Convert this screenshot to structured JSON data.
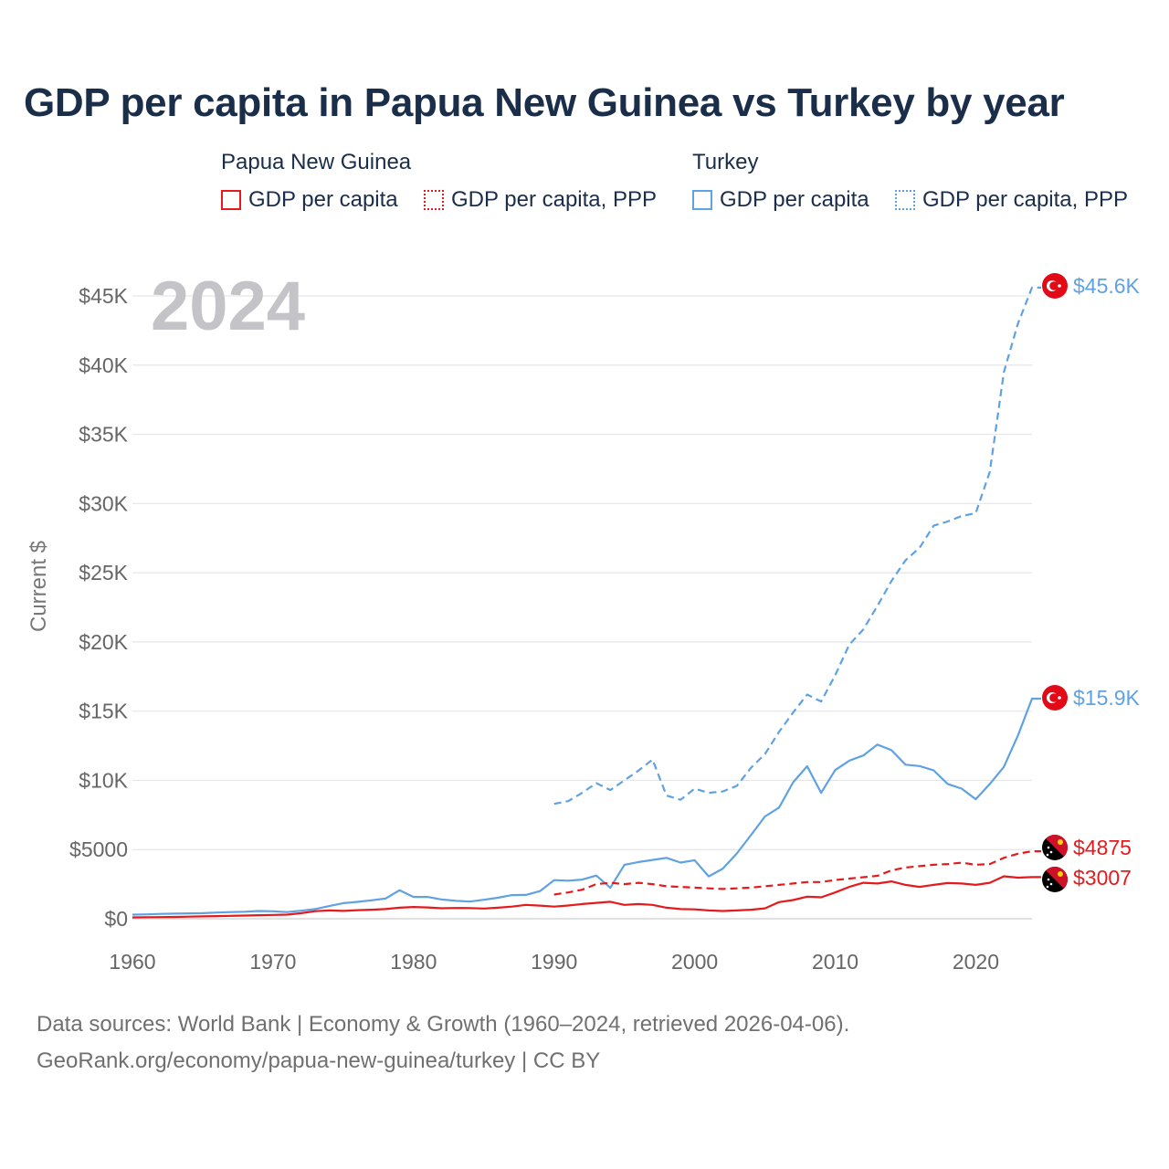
{
  "title": "GDP per capita in Papua New Guinea vs Turkey by year",
  "year_label": "2024",
  "legend": {
    "groups": [
      {
        "name": "Papua New Guinea",
        "items": [
          {
            "label": "GDP per capita",
            "color": "#e41a1c",
            "style": "solid"
          },
          {
            "label": "GDP per capita, PPP",
            "color": "#e41a1c",
            "style": "dotted"
          }
        ]
      },
      {
        "name": "Turkey",
        "items": [
          {
            "label": "GDP per capita",
            "color": "#5fa2e4",
            "style": "solid"
          },
          {
            "label": "GDP per capita, PPP",
            "color": "#5fa2e4",
            "style": "dotted"
          }
        ]
      }
    ]
  },
  "footer": {
    "line1": "Data sources: World Bank | Economy & Growth (1960–2024, retrieved 2026-04-06).",
    "line2": "GeoRank.org/economy/papua-new-guinea/turkey | CC BY"
  },
  "chart_data": {
    "type": "line",
    "title": "GDP per capita in Papua New Guinea vs Turkey by year",
    "xlabel": "",
    "ylabel": "Current $",
    "xlim": [
      1960,
      2024
    ],
    "ylim": [
      0,
      45000
    ],
    "x_ticks": [
      1960,
      1970,
      1980,
      1990,
      2000,
      2010,
      2020
    ],
    "x_tick_labels": [
      "1960",
      "1970",
      "1980",
      "1990",
      "2000",
      "2010",
      "2020"
    ],
    "y_ticks": [
      0,
      5000,
      10000,
      15000,
      20000,
      25000,
      30000,
      35000,
      40000,
      45000
    ],
    "y_tick_labels": [
      "$0",
      "$5000",
      "$10K",
      "$15K",
      "$20K",
      "$25K",
      "$30K",
      "$35K",
      "$40K",
      "$45K"
    ],
    "grid": true,
    "series": [
      {
        "name": "Turkey GDP per capita, PPP",
        "country": "Turkey",
        "color": "#5fa2e4",
        "dash": "dashed",
        "end_label": "$45.6K",
        "x": [
          1990,
          1991,
          1992,
          1993,
          1994,
          1995,
          1996,
          1997,
          1998,
          1999,
          2000,
          2001,
          2002,
          2003,
          2004,
          2005,
          2006,
          2007,
          2008,
          2009,
          2010,
          2011,
          2012,
          2013,
          2014,
          2015,
          2016,
          2017,
          2018,
          2019,
          2020,
          2021,
          2022,
          2023,
          2024
        ],
        "values": [
          8300,
          8500,
          9100,
          9800,
          9300,
          10000,
          10700,
          11500,
          8900,
          8600,
          9400,
          9100,
          9200,
          9600,
          10900,
          11900,
          13500,
          14900,
          16200,
          15700,
          17600,
          19800,
          20900,
          22600,
          24400,
          25900,
          26800,
          28400,
          28700,
          29100,
          29300,
          32300,
          39500,
          43000,
          45600
        ]
      },
      {
        "name": "Turkey GDP per capita",
        "country": "Turkey",
        "color": "#5fa2e4",
        "dash": "solid",
        "end_label": "$15.9K",
        "x": [
          1960,
          1961,
          1962,
          1963,
          1964,
          1965,
          1966,
          1967,
          1968,
          1969,
          1970,
          1971,
          1972,
          1973,
          1974,
          1975,
          1976,
          1977,
          1978,
          1979,
          1980,
          1981,
          1982,
          1983,
          1984,
          1985,
          1986,
          1987,
          1988,
          1989,
          1990,
          1991,
          1992,
          1993,
          1994,
          1995,
          1996,
          1997,
          1998,
          1999,
          2000,
          2001,
          2002,
          2003,
          2004,
          2005,
          2006,
          2007,
          2008,
          2009,
          2010,
          2011,
          2012,
          2013,
          2014,
          2015,
          2016,
          2017,
          2018,
          2019,
          2020,
          2021,
          2022,
          2023,
          2024
        ],
        "values": [
          300,
          320,
          350,
          370,
          390,
          400,
          450,
          480,
          510,
          560,
          540,
          480,
          580,
          700,
          920,
          1130,
          1220,
          1330,
          1460,
          2060,
          1580,
          1580,
          1390,
          1300,
          1240,
          1370,
          1520,
          1710,
          1720,
          2000,
          2790,
          2750,
          2830,
          3120,
          2240,
          3900,
          4100,
          4250,
          4400,
          4060,
          4230,
          3060,
          3620,
          4720,
          6040,
          7390,
          8030,
          9860,
          11020,
          9100,
          10740,
          11420,
          11800,
          12580,
          12180,
          11130,
          11030,
          10720,
          9740,
          9400,
          8640,
          9740,
          10970,
          13240,
          15900
        ]
      },
      {
        "name": "Papua New Guinea GDP per capita, PPP",
        "country": "Papua New Guinea",
        "color": "#e41a1c",
        "dash": "dashed",
        "end_label": "$4875",
        "x": [
          1990,
          1991,
          1992,
          1993,
          1994,
          1995,
          1996,
          1997,
          1998,
          1999,
          2000,
          2001,
          2002,
          2003,
          2004,
          2005,
          2006,
          2007,
          2008,
          2009,
          2010,
          2011,
          2012,
          2013,
          2014,
          2015,
          2016,
          2017,
          2018,
          2019,
          2020,
          2021,
          2022,
          2023,
          2024
        ],
        "values": [
          1750,
          1900,
          2100,
          2500,
          2600,
          2500,
          2600,
          2500,
          2350,
          2300,
          2250,
          2200,
          2150,
          2200,
          2250,
          2350,
          2450,
          2550,
          2650,
          2650,
          2800,
          2900,
          3000,
          3100,
          3500,
          3700,
          3800,
          3900,
          3950,
          4050,
          3900,
          3950,
          4400,
          4700,
          4875
        ]
      },
      {
        "name": "Papua New Guinea GDP per capita",
        "country": "Papua New Guinea",
        "color": "#e41a1c",
        "dash": "solid",
        "end_label": "$3007",
        "x": [
          1960,
          1961,
          1962,
          1963,
          1964,
          1965,
          1966,
          1967,
          1968,
          1969,
          1970,
          1971,
          1972,
          1973,
          1974,
          1975,
          1976,
          1977,
          1978,
          1979,
          1980,
          1981,
          1982,
          1983,
          1984,
          1985,
          1986,
          1987,
          1988,
          1989,
          1990,
          1991,
          1992,
          1993,
          1994,
          1995,
          1996,
          1997,
          1998,
          1999,
          2000,
          2001,
          2002,
          2003,
          2004,
          2005,
          2006,
          2007,
          2008,
          2009,
          2010,
          2011,
          2012,
          2013,
          2014,
          2015,
          2016,
          2017,
          2018,
          2019,
          2020,
          2021,
          2022,
          2023,
          2024
        ],
        "values": [
          100,
          110,
          120,
          130,
          150,
          170,
          190,
          210,
          230,
          260,
          280,
          300,
          400,
          550,
          600,
          570,
          620,
          650,
          700,
          800,
          850,
          820,
          760,
          780,
          770,
          740,
          800,
          880,
          1000,
          950,
          880,
          960,
          1060,
          1150,
          1230,
          1000,
          1060,
          1000,
          800,
          700,
          680,
          600,
          560,
          600,
          650,
          750,
          1200,
          1350,
          1600,
          1550,
          1900,
          2300,
          2600,
          2550,
          2700,
          2450,
          2300,
          2450,
          2580,
          2550,
          2450,
          2600,
          3070,
          2970,
          3007
        ]
      }
    ]
  }
}
